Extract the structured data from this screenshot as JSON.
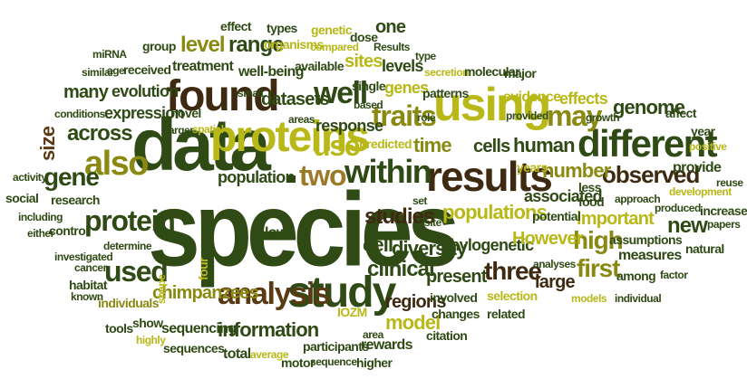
{
  "palette": {
    "dark_green": "#2f4a14",
    "green": "#5b7a16",
    "olive": "#8a8a12",
    "yellow_olive": "#b8b818",
    "brown": "#5a3a14",
    "dark_brown": "#3e2a10",
    "tan": "#9b7a2a",
    "khaki": "#a89a3a"
  },
  "words": [
    {
      "text": "species",
      "color": "dark_green"
    },
    {
      "text": "data",
      "color": "dark_green"
    },
    {
      "text": "proteins",
      "color": "yellow_olive"
    },
    {
      "text": "study",
      "color": "dark_green"
    },
    {
      "text": "results",
      "color": "dark_brown"
    },
    {
      "text": "found",
      "color": "dark_brown"
    },
    {
      "text": "using",
      "color": "yellow_olive"
    },
    {
      "text": "within",
      "color": "dark_green"
    },
    {
      "text": "different",
      "color": "dark_green"
    },
    {
      "text": "also",
      "color": "olive"
    },
    {
      "text": "protein",
      "color": "dark_green"
    },
    {
      "text": "two",
      "color": "tan"
    },
    {
      "text": "used",
      "color": "dark_green"
    },
    {
      "text": "analysis",
      "color": "brown"
    },
    {
      "text": "information",
      "color": "dark_green"
    },
    {
      "text": "well",
      "color": "dark_green"
    },
    {
      "text": "traits",
      "color": "olive"
    },
    {
      "text": "use",
      "color": "yellow_olive"
    },
    {
      "text": "may",
      "color": "olive"
    },
    {
      "text": "gene",
      "color": "dark_green"
    },
    {
      "text": "across",
      "color": "dark_green"
    },
    {
      "text": "size",
      "color": "brown"
    },
    {
      "text": "populations",
      "color": "yellow_olive"
    },
    {
      "text": "three",
      "color": "dark_brown"
    },
    {
      "text": "high",
      "color": "olive"
    },
    {
      "text": "first",
      "color": "olive"
    },
    {
      "text": "observed",
      "color": "dark_brown"
    },
    {
      "text": "number",
      "color": "olive"
    },
    {
      "text": "human",
      "color": "dark_green"
    },
    {
      "text": "time",
      "color": "olive"
    },
    {
      "text": "clinical",
      "color": "dark_green"
    },
    {
      "text": "studies",
      "color": "dark_brown"
    },
    {
      "text": "level",
      "color": "olive"
    },
    {
      "text": "range",
      "color": "dark_green"
    },
    {
      "text": "genome",
      "color": "dark_green"
    },
    {
      "text": "new",
      "color": "dark_green"
    },
    {
      "text": "population",
      "color": "dark_green"
    },
    {
      "text": "model",
      "color": "yellow_olive"
    },
    {
      "text": "cell",
      "color": "dark_green"
    },
    {
      "text": "diversity",
      "color": "dark_green"
    },
    {
      "text": "phylogenetic",
      "color": "dark_green"
    },
    {
      "text": "However",
      "color": "yellow_olive"
    },
    {
      "text": "important",
      "color": "yellow_olive"
    },
    {
      "text": "chimpanzees",
      "color": "olive"
    },
    {
      "text": "sequencing",
      "color": "dark_green"
    },
    {
      "text": "associated",
      "color": "dark_green"
    },
    {
      "text": "large",
      "color": "dark_brown"
    },
    {
      "text": "regions",
      "color": "dark_brown"
    },
    {
      "text": "present",
      "color": "dark_green"
    },
    {
      "text": "datasets",
      "color": "dark_green"
    },
    {
      "text": "response",
      "color": "dark_green"
    },
    {
      "text": "cells",
      "color": "dark_green"
    },
    {
      "text": "expression",
      "color": "dark_green"
    },
    {
      "text": "evolution",
      "color": "dark_green"
    },
    {
      "text": "many",
      "color": "dark_green"
    },
    {
      "text": "treatment",
      "color": "dark_green"
    },
    {
      "text": "well-being",
      "color": "dark_green"
    },
    {
      "text": "sites",
      "color": "yellow_olive"
    },
    {
      "text": "levels",
      "color": "dark_green"
    },
    {
      "text": "genes",
      "color": "yellow_olive"
    },
    {
      "text": "effects",
      "color": "yellow_olive"
    },
    {
      "text": "evidence",
      "color": "yellow_olive"
    },
    {
      "text": "research",
      "color": "dark_green"
    },
    {
      "text": "control",
      "color": "dark_green"
    },
    {
      "text": "social",
      "color": "dark_green"
    },
    {
      "text": "individuals",
      "color": "olive"
    },
    {
      "text": "measures",
      "color": "dark_green"
    },
    {
      "text": "potential",
      "color": "dark_green"
    },
    {
      "text": "food",
      "color": "dark_green"
    },
    {
      "text": "provide",
      "color": "dark_green"
    },
    {
      "text": "affect",
      "color": "dark_green"
    },
    {
      "text": "year",
      "color": "dark_green"
    },
    {
      "text": "positive",
      "color": "yellow_olive"
    },
    {
      "text": "development",
      "color": "yellow_olive"
    },
    {
      "text": "increased",
      "color": "dark_green"
    },
    {
      "text": "produced",
      "color": "dark_green"
    },
    {
      "text": "papers",
      "color": "dark_green"
    },
    {
      "text": "natural",
      "color": "dark_green"
    },
    {
      "text": "factor",
      "color": "dark_green"
    },
    {
      "text": "among",
      "color": "dark_green"
    },
    {
      "text": "individual",
      "color": "dark_green"
    },
    {
      "text": "models",
      "color": "yellow_olive"
    },
    {
      "text": "assumptions",
      "color": "dark_green"
    },
    {
      "text": "approach",
      "color": "dark_green"
    },
    {
      "text": "less",
      "color": "dark_green"
    },
    {
      "text": "years",
      "color": "yellow_olive"
    },
    {
      "text": "predicted",
      "color": "yellow_olive"
    },
    {
      "text": "site",
      "color": "dark_green"
    },
    {
      "text": "set",
      "color": "dark_green"
    },
    {
      "text": "analyses",
      "color": "dark_green"
    },
    {
      "text": "selection",
      "color": "yellow_olive"
    },
    {
      "text": "related",
      "color": "dark_green"
    },
    {
      "text": "involved",
      "color": "dark_green"
    },
    {
      "text": "changes",
      "color": "dark_green"
    },
    {
      "text": "citation",
      "color": "dark_green"
    },
    {
      "text": "area",
      "color": "dark_green"
    },
    {
      "text": "rewards",
      "color": "dark_green"
    },
    {
      "text": "higher",
      "color": "dark_green"
    },
    {
      "text": "IOZM",
      "color": "yellow_olive"
    },
    {
      "text": "participants",
      "color": "dark_green"
    },
    {
      "text": "motor",
      "color": "dark_green"
    },
    {
      "text": "sequence",
      "color": "dark_green"
    },
    {
      "text": "total",
      "color": "dark_green"
    },
    {
      "text": "average",
      "color": "yellow_olive"
    },
    {
      "text": "sequences",
      "color": "dark_green"
    },
    {
      "text": "show",
      "color": "dark_green"
    },
    {
      "text": "tools",
      "color": "dark_green"
    },
    {
      "text": "highly",
      "color": "yellow_olive"
    },
    {
      "text": "shape",
      "color": "yellow_olive"
    },
    {
      "text": "four",
      "color": "yellow_olive"
    },
    {
      "text": "low",
      "color": "dark_green"
    },
    {
      "text": "known",
      "color": "dark_green"
    },
    {
      "text": "habitat",
      "color": "dark_green"
    },
    {
      "text": "cancer",
      "color": "dark_green"
    },
    {
      "text": "investigated",
      "color": "dark_green"
    },
    {
      "text": "determine",
      "color": "dark_green"
    },
    {
      "text": "either",
      "color": "dark_green"
    },
    {
      "text": "including",
      "color": "dark_green"
    },
    {
      "text": "activity",
      "color": "dark_green"
    },
    {
      "text": "conditions",
      "color": "dark_green"
    },
    {
      "text": "similar",
      "color": "dark_green"
    },
    {
      "text": "age",
      "color": "dark_green"
    },
    {
      "text": "received",
      "color": "dark_green"
    },
    {
      "text": "miRNA",
      "color": "dark_green"
    },
    {
      "text": "group",
      "color": "dark_green"
    },
    {
      "text": "novel",
      "color": "dark_green"
    },
    {
      "text": "larger",
      "color": "dark_green"
    },
    {
      "text": "spatial",
      "color": "yellow_olive"
    },
    {
      "text": "small",
      "color": "dark_green"
    },
    {
      "text": "available",
      "color": "dark_green"
    },
    {
      "text": "areas",
      "color": "dark_green"
    },
    {
      "text": "based",
      "color": "dark_green"
    },
    {
      "text": "single",
      "color": "dark_green"
    },
    {
      "text": "role",
      "color": "dark_green"
    },
    {
      "text": "patterns",
      "color": "dark_green"
    },
    {
      "text": "secretion",
      "color": "yellow_olive"
    },
    {
      "text": "molecular",
      "color": "dark_green"
    },
    {
      "text": "major",
      "color": "dark_green"
    },
    {
      "text": "provided",
      "color": "dark_green"
    },
    {
      "text": "growth",
      "color": "dark_green"
    },
    {
      "text": "type",
      "color": "dark_green"
    },
    {
      "text": "Results",
      "color": "dark_green"
    },
    {
      "text": "one",
      "color": "dark_green"
    },
    {
      "text": "dose",
      "color": "dark_green"
    },
    {
      "text": "compared",
      "color": "yellow_olive"
    },
    {
      "text": "genetic",
      "color": "yellow_olive"
    },
    {
      "text": "types",
      "color": "dark_green"
    },
    {
      "text": "organisms",
      "color": "yellow_olive"
    },
    {
      "text": "effect",
      "color": "dark_green"
    },
    {
      "text": "reuse",
      "color": "dark_green"
    }
  ]
}
